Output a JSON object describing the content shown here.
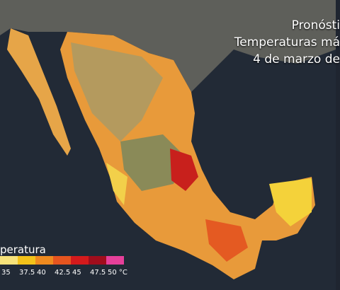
{
  "title_lines": [
    "Pronósti",
    "Temperaturas má",
    "4 de marzo de"
  ],
  "legend": {
    "title": "peratura",
    "labels": [
      "35",
      "37.5",
      "40",
      "42.5",
      "45",
      "47.5",
      "50 °C"
    ],
    "colors": [
      "#f7e27a",
      "#f3c21a",
      "#ef8a1f",
      "#e6551f",
      "#d41a1c",
      "#a00d1c",
      "#e6409a"
    ]
  }
}
